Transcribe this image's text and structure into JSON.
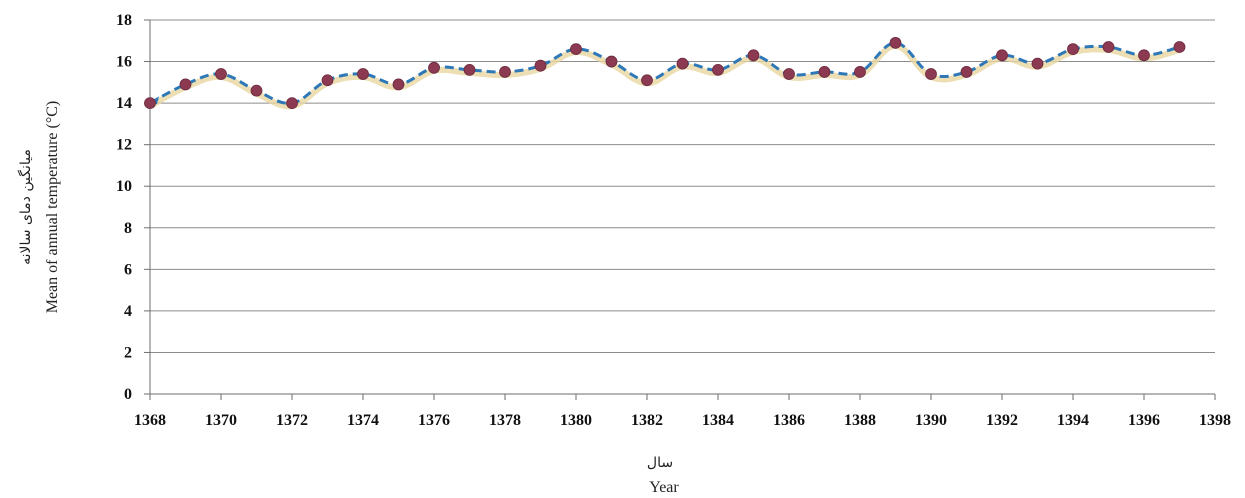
{
  "chart_data": {
    "type": "line",
    "title": "",
    "xlabel": "Year",
    "xlabel_fa": "سال",
    "ylabel": "Mean of annual temperature (°C)",
    "ylabel_fa": "میانگین دمای سالانه",
    "xlim": [
      1368,
      1398
    ],
    "ylim": [
      0,
      18
    ],
    "x_ticks": [
      1368,
      1370,
      1372,
      1374,
      1376,
      1378,
      1380,
      1382,
      1384,
      1386,
      1388,
      1390,
      1392,
      1394,
      1396,
      1398
    ],
    "y_ticks": [
      0,
      2,
      4,
      6,
      8,
      10,
      12,
      14,
      16,
      18
    ],
    "grid": "horizontal",
    "line_color": "#2e78b7",
    "marker_color": "#8b3a52",
    "series": [
      {
        "x": [
          1368,
          1369,
          1370,
          1371,
          1372,
          1373,
          1374,
          1375,
          1376,
          1377,
          1378,
          1379,
          1380,
          1381,
          1382,
          1383,
          1384,
          1385,
          1386,
          1387,
          1388,
          1389,
          1390,
          1391,
          1392,
          1393,
          1394,
          1395,
          1396,
          1397
        ],
        "values": [
          14.0,
          14.9,
          15.4,
          14.6,
          14.0,
          15.1,
          15.4,
          14.9,
          15.7,
          15.6,
          15.5,
          15.8,
          16.6,
          16.0,
          15.1,
          15.9,
          15.6,
          16.3,
          15.4,
          15.5,
          15.5,
          16.9,
          15.4,
          15.5,
          16.3,
          15.9,
          16.6,
          16.7,
          16.3,
          16.7
        ]
      }
    ]
  }
}
